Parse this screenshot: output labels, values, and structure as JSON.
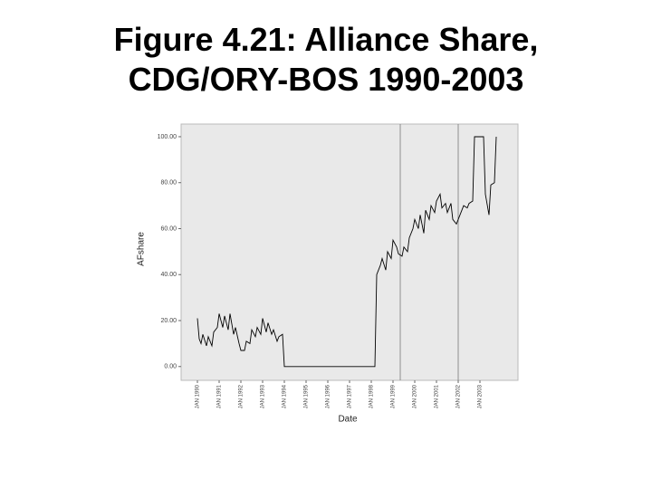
{
  "chart_data": {
    "type": "line",
    "title": "Figure 4.21: Alliance Share, CDG/ORY-BOS 1990-2003",
    "x_label": "Date",
    "y_label": "AFshare",
    "color": "#000000",
    "x": [
      "1990-01",
      "1990-02",
      "1990-03",
      "1990-04",
      "1990-06",
      "1990-07",
      "1990-09",
      "1990-10",
      "1990-12",
      "1991-01",
      "1991-03",
      "1991-04",
      "1991-06",
      "1991-07",
      "1991-09",
      "1991-10",
      "1991-12",
      "1992-01",
      "1992-03",
      "1992-04",
      "1992-06",
      "1992-07",
      "1992-09",
      "1992-10",
      "1992-12",
      "1993-01",
      "1993-03",
      "1993-04",
      "1993-06",
      "1993-07",
      "1993-09",
      "1993-10",
      "1993-12",
      "1994-01",
      "1995-01",
      "1996-01",
      "1997-01",
      "1998-01",
      "1998-03",
      "1998-04",
      "1998-06",
      "1998-07",
      "1998-09",
      "1998-10",
      "1998-12",
      "1999-01",
      "1999-03",
      "1999-04",
      "1999-06",
      "1999-07",
      "1999-09",
      "1999-10",
      "1999-12",
      "2000-01",
      "2000-03",
      "2000-04",
      "2000-06",
      "2000-07",
      "2000-09",
      "2000-10",
      "2000-12",
      "2001-01",
      "2001-03",
      "2001-04",
      "2001-06",
      "2001-07",
      "2001-09",
      "2001-10",
      "2001-12",
      "2002-01",
      "2002-03",
      "2002-04",
      "2002-06",
      "2002-07",
      "2002-09",
      "2002-10",
      "2002-12",
      "2003-01",
      "2003-03",
      "2003-04",
      "2003-06",
      "2003-07",
      "2003-09",
      "2003-10"
    ],
    "values": [
      21,
      12,
      10,
      14,
      9,
      13,
      9,
      15,
      17,
      23,
      17,
      22,
      16,
      23,
      14,
      17,
      10,
      7,
      7,
      11,
      10,
      16,
      13,
      17,
      14,
      21,
      15,
      19,
      14,
      16,
      11,
      13,
      14,
      0,
      0,
      0,
      0,
      0,
      0,
      40,
      44,
      47,
      42,
      50,
      47,
      55,
      52,
      49,
      48,
      52,
      50,
      56,
      60,
      64,
      60,
      66,
      58,
      68,
      64,
      70,
      67,
      72,
      75,
      69,
      71,
      67,
      71,
      64,
      62,
      64,
      68,
      70,
      69,
      71,
      72,
      100,
      100,
      100,
      100,
      75,
      66,
      79,
      80,
      100
    ],
    "xlim": [
      "1989-04",
      "2004-10"
    ],
    "xticks": [
      {
        "value": "1990-01",
        "label": "JAN 1990"
      },
      {
        "value": "1991-01",
        "label": "JAN 1991"
      },
      {
        "value": "1992-01",
        "label": "JAN 1992"
      },
      {
        "value": "1993-01",
        "label": "JAN 1993"
      },
      {
        "value": "1994-01",
        "label": "JAN 1994"
      },
      {
        "value": "1995-01",
        "label": "JAN 1995"
      },
      {
        "value": "1996-01",
        "label": "JAN 1996"
      },
      {
        "value": "1997-01",
        "label": "JAN 1997"
      },
      {
        "value": "1998-01",
        "label": "JAN 1998"
      },
      {
        "value": "1999-01",
        "label": "JAN 1999"
      },
      {
        "value": "2000-01",
        "label": "JAN 2000"
      },
      {
        "value": "2001-01",
        "label": "JAN 2001"
      },
      {
        "value": "2002-01",
        "label": "JAN 2002"
      },
      {
        "value": "2003-01",
        "label": "JAN 2003"
      }
    ],
    "ylim": [
      -6,
      105.5
    ],
    "yticks": [
      {
        "value": 0,
        "label": "0.00"
      },
      {
        "value": 20,
        "label": "20.00"
      },
      {
        "value": 40,
        "label": "40.00"
      },
      {
        "value": 60,
        "label": "60.00"
      },
      {
        "value": 80,
        "label": "80.00"
      },
      {
        "value": 100,
        "label": "100.00"
      }
    ],
    "reference_lines": [
      "1999-05",
      "2002-01"
    ]
  }
}
